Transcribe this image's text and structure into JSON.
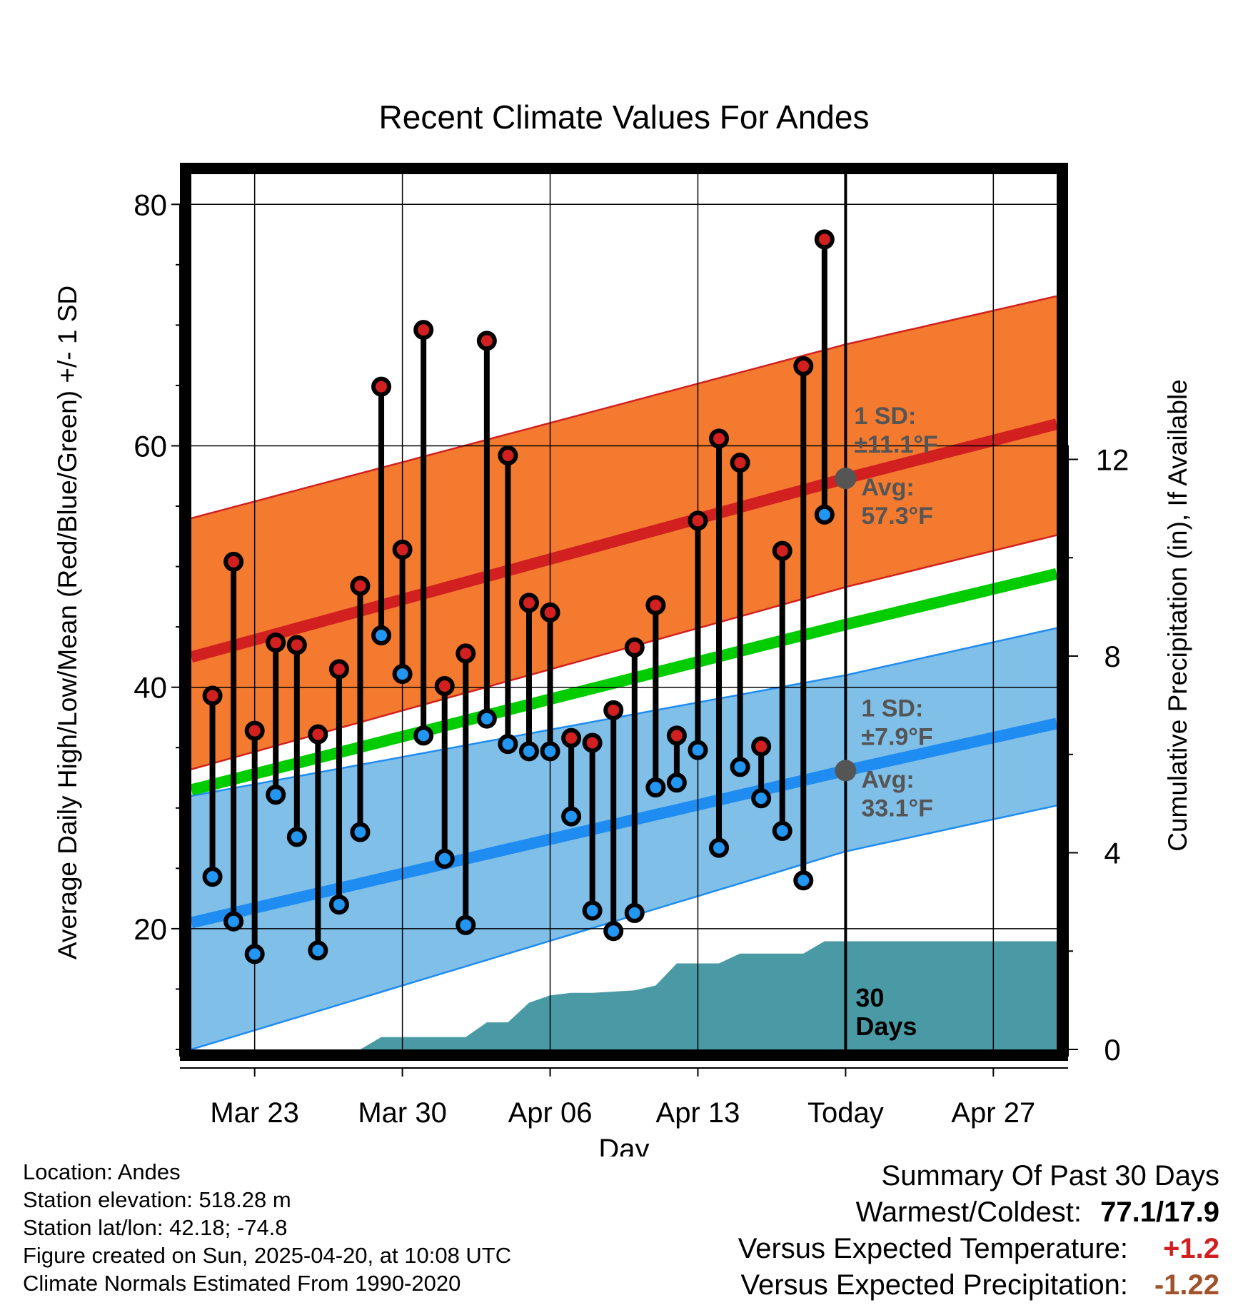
{
  "chart_data": {
    "type": "line",
    "title": "Recent Climate Values For Andes",
    "xlabel": "Day",
    "ylabel_left": "Average Daily High/Low/Mean (Red/Blue/Green) +/- 1 SD",
    "ylabel_right": "Cumulative Precipitation (in), If Available",
    "x_tick_labels": [
      "Mar 23",
      "Mar 30",
      "Apr 06",
      "Apr 13",
      "Today",
      "Apr 27"
    ],
    "x_tick_dates": [
      "2025-03-23",
      "2025-03-30",
      "2025-04-06",
      "2025-04-13",
      "2025-04-20",
      "2025-04-27"
    ],
    "xlim": [
      "2025-03-20",
      "2025-04-30"
    ],
    "ylim_left": [
      10,
      82.5
    ],
    "ylim_right": [
      0,
      17.8
    ],
    "y_ticks_left": [
      20,
      40,
      60,
      80
    ],
    "y_ticks_right": [
      0,
      4,
      8,
      12
    ],
    "grid": true,
    "today": "2025-04-20",
    "daily": {
      "dates": [
        "2025-03-21",
        "2025-03-22",
        "2025-03-23",
        "2025-03-24",
        "2025-03-25",
        "2025-03-26",
        "2025-03-27",
        "2025-03-28",
        "2025-03-29",
        "2025-03-30",
        "2025-03-31",
        "2025-04-01",
        "2025-04-02",
        "2025-04-03",
        "2025-04-04",
        "2025-04-05",
        "2025-04-06",
        "2025-04-07",
        "2025-04-08",
        "2025-04-09",
        "2025-04-10",
        "2025-04-11",
        "2025-04-12",
        "2025-04-13",
        "2025-04-14",
        "2025-04-15",
        "2025-04-16",
        "2025-04-17",
        "2025-04-18",
        "2025-04-19"
      ],
      "high": [
        39.3,
        50.4,
        36.4,
        43.7,
        43.5,
        36.1,
        41.5,
        48.4,
        64.9,
        51.4,
        69.6,
        40.1,
        42.8,
        68.7,
        59.2,
        47.0,
        46.2,
        35.8,
        35.4,
        38.1,
        43.3,
        46.8,
        36.0,
        53.8,
        60.6,
        58.6,
        35.1,
        51.3,
        66.6,
        77.1
      ],
      "low": [
        24.3,
        20.6,
        17.9,
        31.1,
        27.6,
        18.2,
        22.0,
        28.0,
        44.3,
        41.1,
        36.0,
        25.8,
        20.3,
        37.4,
        35.3,
        34.7,
        34.7,
        29.3,
        21.5,
        19.8,
        21.3,
        31.7,
        32.1,
        34.8,
        26.7,
        33.4,
        30.8,
        28.1,
        24.0,
        54.3
      ]
    },
    "normals": {
      "dates": [
        "2025-03-20",
        "2025-04-20",
        "2025-04-30"
      ],
      "high_mean": [
        42.5,
        57.3,
        61.8
      ],
      "high_upper": [
        54.0,
        68.4,
        72.4
      ],
      "high_lower": [
        33.2,
        48.3,
        52.6
      ],
      "low_mean": [
        20.5,
        33.1,
        37.0
      ],
      "low_upper": [
        31.0,
        41.0,
        44.9
      ],
      "low_lower": [
        10.0,
        26.4,
        30.2
      ],
      "mean": [
        31.5,
        45.2,
        49.4
      ]
    },
    "precip_cumulative": {
      "dates": [
        "2025-03-28",
        "2025-03-29",
        "2025-03-30",
        "2025-04-02",
        "2025-04-03",
        "2025-04-04",
        "2025-04-05",
        "2025-04-06",
        "2025-04-07",
        "2025-04-08",
        "2025-04-10",
        "2025-04-11",
        "2025-04-12",
        "2025-04-13",
        "2025-04-14",
        "2025-04-15",
        "2025-04-18",
        "2025-04-19",
        "2025-04-30"
      ],
      "values": [
        0.0,
        0.25,
        0.25,
        0.25,
        0.55,
        0.55,
        0.95,
        1.1,
        1.15,
        1.15,
        1.2,
        1.3,
        1.75,
        1.75,
        1.75,
        1.95,
        1.95,
        2.2,
        2.2
      ]
    },
    "annotations": {
      "high_sd_label": "1 SD:",
      "high_sd_value": "±11.1°F",
      "high_avg_label": "Avg:",
      "high_avg_value": "57.3°F",
      "low_sd_label": "1 SD:",
      "low_sd_value": "±7.9°F",
      "low_avg_label": "Avg:",
      "low_avg_value": "33.1°F",
      "days_line1": "30",
      "days_line2": "Days"
    },
    "colors": {
      "high_band": "#f47a30",
      "high_line": "#d1201f",
      "low_band": "#7fbfe8",
      "low_line": "#1e8cf0",
      "mean_line": "#00cc00",
      "precip": "#4a9aa5",
      "high_marker": "#d1201f",
      "low_marker": "#2196f3",
      "annotation": "#555555"
    }
  },
  "info": {
    "location": "Location: Andes",
    "elevation": "Station elevation: 518.28 m",
    "latlon": "Station lat/lon: 42.18; -74.8",
    "created": "Figure created on Sun, 2025-04-20, at 10:08 UTC",
    "normals": "Climate Normals Estimated From 1990-2020"
  },
  "summary": {
    "title": "Summary Of Past 30 Days",
    "warmest_label": "Warmest/Coldest:",
    "warmest_value": "77.1/17.9",
    "temp_label": "Versus Expected Temperature:",
    "temp_value": "+1.2",
    "precip_label": "Versus Expected Precipitation:",
    "precip_value": "-1.22"
  }
}
